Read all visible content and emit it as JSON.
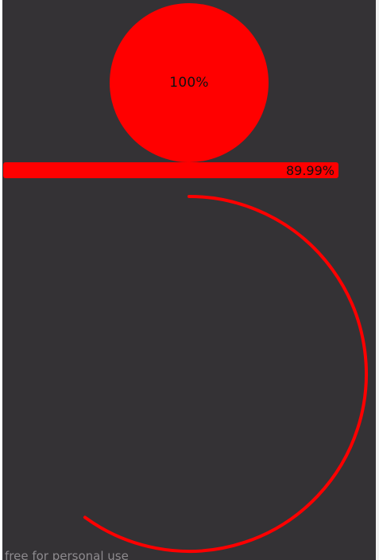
{
  "theme": {
    "background": "#343235",
    "accent": "#ff0000",
    "label_color": "#111111"
  },
  "circle_progress": {
    "label": "100%",
    "value_fraction": 1.0
  },
  "bar_progress": {
    "label": "89.99%",
    "value_fraction": 0.8999
  },
  "arc_progress": {
    "value_fraction": 0.6
  },
  "watermark": {
    "text": "free for personal use"
  }
}
